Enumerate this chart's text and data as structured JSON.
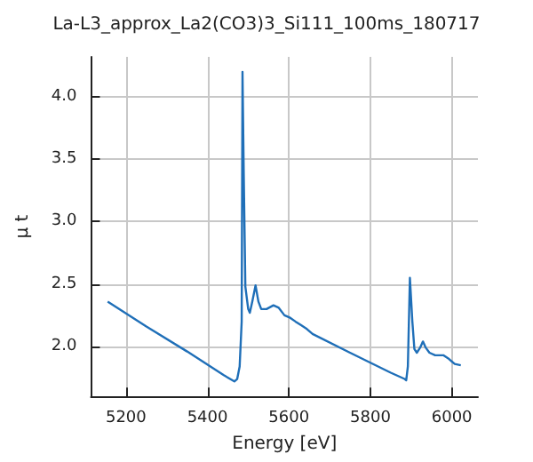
{
  "chart_data": {
    "type": "line",
    "title": "La-L3_approx_La2(CO3)3_Si111_100ms_180717",
    "xlabel": "Energy [eV]",
    "ylabel": "μ t",
    "series": [
      {
        "color": "#1f6fb8",
        "x": [
          5155,
          5250,
          5350,
          5440,
          5466,
          5473,
          5479,
          5484,
          5486,
          5489,
          5493,
          5500,
          5504,
          5510,
          5518,
          5525,
          5532,
          5545,
          5562,
          5575,
          5589,
          5603,
          5616,
          5630,
          5644,
          5658,
          5750,
          5850,
          5884,
          5888,
          5892,
          5897,
          5903,
          5908,
          5914,
          5922,
          5929,
          5936,
          5945,
          5959,
          5979,
          5993,
          6007,
          6022
        ],
        "values": [
          2.36,
          2.16,
          1.96,
          1.77,
          1.72,
          1.74,
          1.84,
          2.2,
          4.2,
          3.39,
          2.48,
          2.3,
          2.27,
          2.36,
          2.49,
          2.36,
          2.3,
          2.3,
          2.33,
          2.31,
          2.25,
          2.23,
          2.2,
          2.17,
          2.14,
          2.1,
          1.95,
          1.79,
          1.74,
          1.73,
          1.84,
          2.55,
          2.2,
          1.98,
          1.95,
          1.99,
          2.04,
          1.99,
          1.95,
          1.93,
          1.93,
          1.9,
          1.86,
          1.85
        ]
      }
    ],
    "xlim": [
      5114,
      6064
    ],
    "ylim": [
      1.6,
      4.32
    ],
    "xticks": [
      5200,
      5400,
      5600,
      5800,
      6000
    ],
    "yticks": [
      {
        "value": 2,
        "label": "2.0"
      },
      {
        "value": 2.5,
        "label": "2.5"
      },
      {
        "value": 3,
        "label": "3.0"
      },
      {
        "value": 3.5,
        "label": "3.5"
      },
      {
        "value": 4,
        "label": "4.0"
      }
    ],
    "grid": true,
    "marker": "none",
    "line_style": "solid"
  }
}
